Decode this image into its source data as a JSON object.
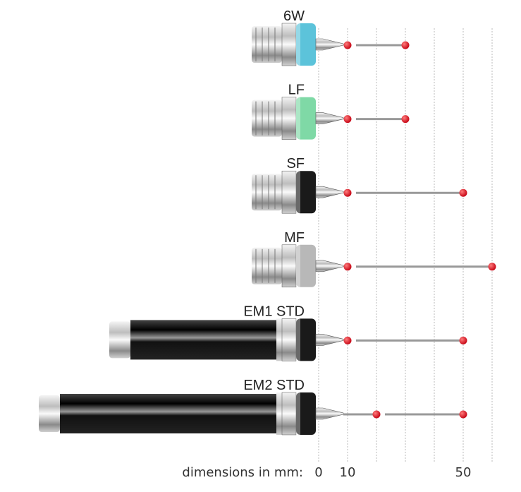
{
  "axis": {
    "label": "dimensions in mm:",
    "unit": "mm",
    "ticks": [
      0,
      10,
      20,
      30,
      40,
      50,
      60
    ],
    "tick_labels": [
      "0",
      "10",
      "50"
    ]
  },
  "probes": [
    {
      "name": "6W",
      "body_color": "#5cc3da",
      "extension": false,
      "ball_positions_mm": [
        10,
        30
      ]
    },
    {
      "name": "LF",
      "body_color": "#7fd9a6",
      "extension": false,
      "ball_positions_mm": [
        10,
        30
      ]
    },
    {
      "name": "SF",
      "body_color": "#1a1a1a",
      "extension": false,
      "ball_positions_mm": [
        10,
        50
      ]
    },
    {
      "name": "MF",
      "body_color": "#b8b8b8",
      "extension": false,
      "ball_positions_mm": [
        10,
        60
      ]
    },
    {
      "name": "EM1 STD",
      "body_color": "#1a1a1a",
      "extension": true,
      "ball_positions_mm": [
        10,
        50
      ]
    },
    {
      "name": "EM2 STD",
      "body_color": "#1a1a1a",
      "extension": true,
      "ball_positions_mm": [
        20,
        50
      ]
    }
  ],
  "colors": {
    "ball": "#e0101c",
    "grid": "#bbbbbb"
  }
}
